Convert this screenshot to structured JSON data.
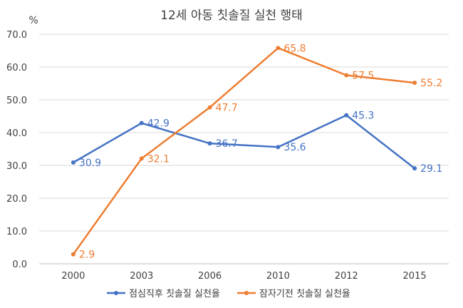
{
  "chart_data": {
    "type": "line",
    "title": "12세 아동 칫솔질 실천 행태",
    "ylabel": "%",
    "xlabel": "",
    "categories": [
      "2000",
      "2003",
      "2006",
      "2010",
      "2012",
      "2015"
    ],
    "ylim": [
      0,
      70
    ],
    "yticks": [
      0,
      10,
      20,
      30,
      40,
      50,
      60,
      70
    ],
    "ytick_labels": [
      "0.0",
      "10.0",
      "20.0",
      "30.0",
      "40.0",
      "50.0",
      "60.0",
      "70.0"
    ],
    "grid": true,
    "legend_position": "bottom",
    "series": [
      {
        "name": "점심직후 칫솔질 실천율",
        "color": "#4472c4",
        "values": [
          30.9,
          42.9,
          36.7,
          35.6,
          45.3,
          29.1
        ],
        "labels": [
          "30.9",
          "42.9",
          "36.7",
          "35.6",
          "45.3",
          "29.1"
        ]
      },
      {
        "name": "잠자기전 칫솔질 실천율",
        "color": "#ed7d31",
        "values": [
          2.9,
          32.1,
          47.7,
          65.8,
          57.5,
          55.2
        ],
        "labels": [
          "2.9",
          "32.1",
          "47.7",
          "65.8",
          "57.5",
          "55.2"
        ]
      }
    ]
  }
}
